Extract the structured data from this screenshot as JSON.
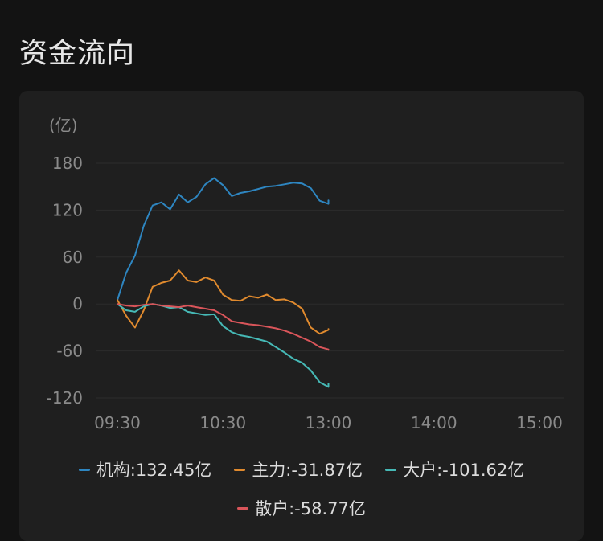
{
  "page": {
    "title": "资金流向"
  },
  "chart_data": {
    "type": "line",
    "unit_label": "(亿)",
    "y_ticks": [
      180,
      120,
      60,
      0,
      -60,
      -120
    ],
    "ylim": [
      -120,
      180
    ],
    "x_ticks": [
      "09:30",
      "10:30",
      "13:00",
      "14:00",
      "15:00"
    ],
    "x_axis_note": "Trading session: 09:30–11:30 and 13:00–15:00 (lunch break collapsed); data shown up to ~13:00",
    "grid": true,
    "legend_position": "bottom",
    "x": [
      "09:30",
      "09:35",
      "09:40",
      "09:45",
      "09:50",
      "09:55",
      "10:00",
      "10:05",
      "10:10",
      "10:15",
      "10:20",
      "10:25",
      "10:30",
      "10:35",
      "10:40",
      "10:45",
      "10:50",
      "10:55",
      "11:00",
      "11:05",
      "11:10",
      "11:15",
      "11:20",
      "11:25",
      "11:30",
      "13:00"
    ],
    "series": [
      {
        "name": "机构",
        "legend_label": "机构:132.45亿",
        "color": "#2e86c1",
        "values": [
          5,
          40,
          62,
          100,
          126,
          130,
          121,
          140,
          130,
          137,
          153,
          161,
          152,
          138,
          142,
          144,
          147,
          150,
          151,
          153,
          155,
          154,
          148,
          132,
          128,
          132.45
        ]
      },
      {
        "name": "主力",
        "legend_label": "主力:-31.87亿",
        "color": "#e08a2e",
        "values": [
          5,
          -15,
          -30,
          -8,
          22,
          27,
          30,
          43,
          30,
          28,
          34,
          30,
          12,
          5,
          4,
          10,
          8,
          12,
          5,
          6,
          2,
          -6,
          -30,
          -38,
          -33,
          -31.87
        ]
      },
      {
        "name": "大户",
        "legend_label": "大户:-101.62亿",
        "color": "#46b9b6",
        "values": [
          0,
          -8,
          -10,
          -3,
          0,
          -2,
          -5,
          -4,
          -10,
          -12,
          -14,
          -13,
          -28,
          -36,
          -40,
          -42,
          -45,
          -48,
          -55,
          -62,
          -70,
          -75,
          -85,
          -100,
          -106,
          -101.62
        ]
      },
      {
        "name": "散户",
        "legend_label": "散户:-58.77亿",
        "color": "#d9555a",
        "values": [
          0,
          -2,
          -3,
          -1,
          0,
          -2,
          -3,
          -4,
          -2,
          -4,
          -6,
          -8,
          -14,
          -22,
          -24,
          -26,
          -27,
          -29,
          -31,
          -34,
          -38,
          -43,
          -48,
          -55,
          -58,
          -58.77
        ]
      }
    ]
  },
  "legend": {
    "row1": [
      "机构:132.45亿",
      "主力:-31.87亿",
      "大户:-101.62亿"
    ],
    "row2": [
      "散户:-58.77亿"
    ]
  }
}
